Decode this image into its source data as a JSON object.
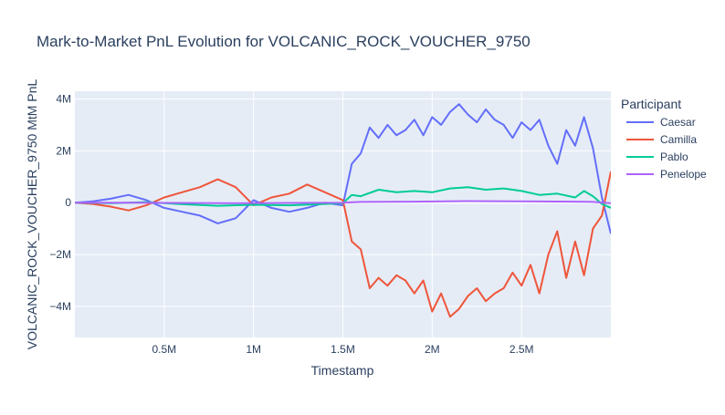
{
  "chart_data": {
    "type": "line",
    "title": "Mark-to-Market PnL Evolution for VOLCANIC_ROCK_VOUCHER_9750",
    "xlabel": "Timestamp",
    "ylabel": "VOLCANIC_ROCK_VOUCHER_9750 MtM PnL",
    "xlim": [
      0,
      3000000
    ],
    "ylim": [
      -5200000,
      4300000
    ],
    "x_ticks": [
      {
        "value": 500000,
        "label": "0.5M"
      },
      {
        "value": 1000000,
        "label": "1M"
      },
      {
        "value": 1500000,
        "label": "1.5M"
      },
      {
        "value": 2000000,
        "label": "2M"
      },
      {
        "value": 2500000,
        "label": "2.5M"
      }
    ],
    "y_ticks": [
      {
        "value": 4000000,
        "label": "4M"
      },
      {
        "value": 2000000,
        "label": "2M"
      },
      {
        "value": 0,
        "label": "0"
      },
      {
        "value": -2000000,
        "label": "−2M"
      },
      {
        "value": -4000000,
        "label": "−4M"
      }
    ],
    "grid": true,
    "legend_title": "Participant",
    "legend_position": "right",
    "series": [
      {
        "name": "Caesar",
        "color": "#636efa",
        "x": [
          0,
          100000,
          200000,
          300000,
          400000,
          500000,
          600000,
          700000,
          800000,
          900000,
          1000000,
          1100000,
          1200000,
          1300000,
          1400000,
          1500000,
          1550000,
          1600000,
          1650000,
          1700000,
          1750000,
          1800000,
          1850000,
          1900000,
          1950000,
          2000000,
          2050000,
          2100000,
          2150000,
          2200000,
          2250000,
          2300000,
          2350000,
          2400000,
          2450000,
          2500000,
          2550000,
          2600000,
          2650000,
          2700000,
          2750000,
          2800000,
          2850000,
          2900000,
          2950000,
          3000000
        ],
        "y": [
          0,
          50000,
          150000,
          300000,
          100000,
          -200000,
          -350000,
          -500000,
          -800000,
          -600000,
          100000,
          -200000,
          -350000,
          -200000,
          0,
          -100000,
          1500000,
          1900000,
          2900000,
          2500000,
          3000000,
          2600000,
          2800000,
          3200000,
          2600000,
          3300000,
          3000000,
          3500000,
          3800000,
          3400000,
          3100000,
          3600000,
          3200000,
          3000000,
          2500000,
          3100000,
          2800000,
          3200000,
          2200000,
          1500000,
          2800000,
          2200000,
          3300000,
          2100000,
          200000,
          -1200000
        ]
      },
      {
        "name": "Camilla",
        "color": "#ef553b",
        "x": [
          0,
          100000,
          200000,
          300000,
          400000,
          500000,
          600000,
          700000,
          800000,
          900000,
          1000000,
          1100000,
          1200000,
          1300000,
          1400000,
          1500000,
          1550000,
          1600000,
          1650000,
          1700000,
          1750000,
          1800000,
          1850000,
          1900000,
          1950000,
          2000000,
          2050000,
          2100000,
          2150000,
          2200000,
          2250000,
          2300000,
          2350000,
          2400000,
          2450000,
          2500000,
          2550000,
          2600000,
          2650000,
          2700000,
          2750000,
          2800000,
          2850000,
          2900000,
          2950000,
          3000000
        ],
        "y": [
          0,
          -50000,
          -150000,
          -300000,
          -100000,
          200000,
          400000,
          600000,
          900000,
          600000,
          -100000,
          200000,
          350000,
          700000,
          400000,
          100000,
          -1500000,
          -1800000,
          -3300000,
          -2900000,
          -3200000,
          -2800000,
          -3000000,
          -3500000,
          -3000000,
          -4200000,
          -3500000,
          -4400000,
          -4100000,
          -3600000,
          -3300000,
          -3800000,
          -3500000,
          -3300000,
          -2700000,
          -3200000,
          -2400000,
          -3500000,
          -2000000,
          -1100000,
          -2900000,
          -1500000,
          -2800000,
          -1000000,
          -500000,
          1200000
        ]
      },
      {
        "name": "Pablo",
        "color": "#00cc96",
        "x": [
          0,
          200000,
          400000,
          600000,
          800000,
          1000000,
          1200000,
          1400000,
          1500000,
          1550000,
          1600000,
          1700000,
          1800000,
          1900000,
          2000000,
          2100000,
          2200000,
          2300000,
          2400000,
          2500000,
          2600000,
          2700000,
          2800000,
          2850000,
          2900000,
          2950000,
          3000000
        ],
        "y": [
          0,
          -20000,
          20000,
          -60000,
          -120000,
          -80000,
          -100000,
          -50000,
          -20000,
          300000,
          250000,
          500000,
          400000,
          450000,
          400000,
          550000,
          600000,
          500000,
          550000,
          450000,
          300000,
          350000,
          200000,
          450000,
          250000,
          -50000,
          -200000
        ]
      },
      {
        "name": "Penelope",
        "color": "#ab63fa",
        "x": [
          0,
          300000,
          600000,
          900000,
          1200000,
          1500000,
          1600000,
          1900000,
          2200000,
          2500000,
          2800000,
          2900000,
          3000000
        ],
        "y": [
          0,
          0,
          -10000,
          -20000,
          -10000,
          0,
          30000,
          40000,
          60000,
          50000,
          40000,
          30000,
          -20000
        ]
      }
    ]
  }
}
